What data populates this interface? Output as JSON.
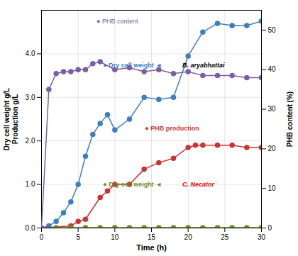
{
  "chart_data": {
    "type": "line",
    "xlabel": "Time (h)",
    "ylabel": "Dry cell weight g/L\nProduction g/L",
    "y2label": "PHB content (%)",
    "xlim": [
      0,
      30
    ],
    "xticks": [
      0,
      5,
      10,
      15,
      20,
      25,
      30
    ],
    "ylim": [
      0,
      5
    ],
    "yticks": [
      0,
      1,
      2,
      3,
      4
    ],
    "y2lim": [
      0,
      55
    ],
    "y2ticks": [
      0,
      10,
      20,
      30,
      40,
      50
    ],
    "grid": true,
    "marker": "circle",
    "series": [
      {
        "color": "#3A7FC1",
        "x": [
          0,
          1,
          2,
          3,
          4,
          5,
          6,
          7,
          8,
          9,
          10,
          12,
          14,
          16,
          18,
          20,
          22,
          24,
          26,
          28,
          30
        ],
        "values": [
          0,
          0.05,
          0.15,
          0.35,
          0.6,
          1.0,
          1.65,
          2.15,
          2.4,
          2.6,
          2.25,
          2.5,
          3.0,
          2.95,
          3.0,
          3.95,
          4.5,
          4.7,
          4.65,
          4.65,
          4.75
        ]
      },
      {
        "color": "#CC3333",
        "x": [
          0,
          4,
          5,
          6,
          8,
          9,
          10,
          12,
          14,
          16,
          18,
          20,
          21,
          22,
          24,
          26,
          28,
          30
        ],
        "values": [
          0,
          0.05,
          0.15,
          0.2,
          0.7,
          0.85,
          1.0,
          1.0,
          1.35,
          1.5,
          1.6,
          1.85,
          1.9,
          1.9,
          1.9,
          1.9,
          1.85,
          1.85
        ]
      },
      {
        "color": "#6B8E23",
        "x": [
          0,
          2,
          4,
          6,
          8,
          10,
          12,
          14,
          16,
          18,
          20,
          22,
          24,
          26,
          28,
          30
        ],
        "values": [
          0,
          0.01,
          0.01,
          0.01,
          0.01,
          0.01,
          0.01,
          0.01,
          0.01,
          0.01,
          0.01,
          0.01,
          0.01,
          0.01,
          0.01,
          0.01
        ]
      },
      {
        "color": "#7B5EA7",
        "axis": "y2",
        "x": [
          0,
          1,
          2,
          3,
          4,
          5,
          6,
          7,
          8,
          10,
          12,
          14,
          16,
          18,
          20,
          22,
          24,
          26,
          28,
          30
        ],
        "values": [
          0,
          35,
          39,
          39.5,
          39.5,
          40,
          40,
          41.5,
          42,
          40,
          40.5,
          39.5,
          40,
          39,
          39.5,
          38.5,
          38.5,
          38.5,
          38,
          38
        ]
      }
    ],
    "annotations": [
      {
        "text": "● PHB content",
        "color": "#7B5EA7"
      },
      {
        "text": "● Dry cell weight ◄",
        "color": "#3A7FC1"
      },
      {
        "text": "B. aryabhattai",
        "color": "black"
      },
      {
        "text": "● PHB production",
        "color": "#CC3333"
      },
      {
        "text": "● Dry cell weight ◄",
        "color": "#6B8E23"
      },
      {
        "text": "C. Necator",
        "color": "red"
      }
    ]
  }
}
